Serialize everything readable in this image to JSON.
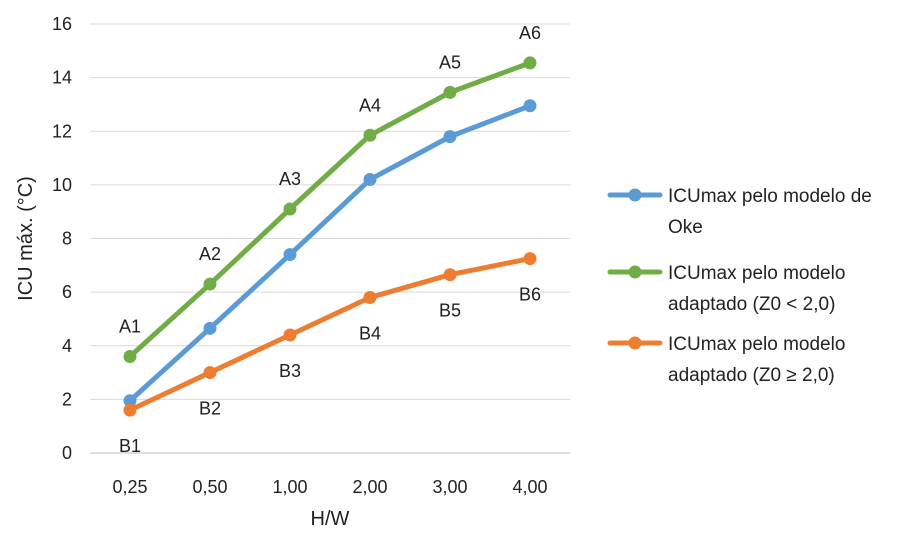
{
  "chart_data": {
    "type": "line",
    "title": "",
    "xlabel": "H/W",
    "ylabel": "ICU máx. (°C)",
    "categories": [
      "0,25",
      "0,50",
      "1,00",
      "2,00",
      "3,00",
      "4,00"
    ],
    "ylim": [
      0,
      16
    ],
    "yticks": [
      "0",
      "2",
      "4",
      "6",
      "8",
      "10",
      "12",
      "14",
      "16"
    ],
    "grid": true,
    "legend_position": "right",
    "series": [
      {
        "name_lines": [
          "ICUmax pelo modelo de",
          "Oke"
        ],
        "color": "#5b9bd5",
        "values": [
          1.95,
          4.65,
          7.4,
          10.2,
          11.8,
          12.95
        ],
        "point_labels": []
      },
      {
        "name_lines": [
          "ICUmax pelo modelo",
          "adaptado (Z0 < 2,0)"
        ],
        "color": "#70ad47",
        "values": [
          3.6,
          6.3,
          9.1,
          11.85,
          13.45,
          14.55
        ],
        "point_labels": [
          "A1",
          "A2",
          "A3",
          "A4",
          "A5",
          "A6"
        ]
      },
      {
        "name_lines": [
          "ICUmax pelo modelo",
          "adaptado (Z0 ≥ 2,0)"
        ],
        "color": "#ed7d31",
        "values": [
          1.6,
          3.0,
          4.4,
          5.8,
          6.65,
          7.25
        ],
        "point_labels": [
          "B1",
          "B2",
          "B3",
          "B4",
          "B5",
          "B6"
        ]
      }
    ]
  }
}
